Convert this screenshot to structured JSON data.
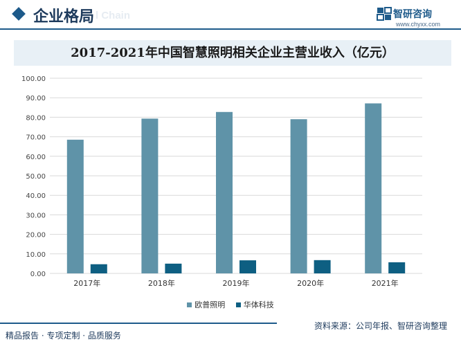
{
  "header": {
    "title": "企业格局",
    "ghost_text": "l Chain"
  },
  "logo": {
    "name": "智研咨询",
    "url": "www.chyxx.com"
  },
  "chart_data": {
    "type": "bar",
    "title": "2017-2021年中国智慧照明相关企业主营业收入（亿元）",
    "categories": [
      "2017年",
      "2018年",
      "2019年",
      "2020年",
      "2021年"
    ],
    "series": [
      {
        "name": "欧普照明",
        "values": [
          68.5,
          79.3,
          82.7,
          79.0,
          87.1
        ],
        "color": "#5f93a8"
      },
      {
        "name": "华体科技",
        "values": [
          4.7,
          5.0,
          6.7,
          6.8,
          5.7
        ],
        "color": "#0e5f82"
      }
    ],
    "yticks": [
      "0.00",
      "10.00",
      "20.00",
      "30.00",
      "40.00",
      "50.00",
      "60.00",
      "70.00",
      "80.00",
      "90.00",
      "100.00"
    ],
    "ylim": [
      0,
      100
    ],
    "grid": true,
    "legend_position": "bottom"
  },
  "footer": {
    "left_text": "精品报告 · 专项定制 · 品质服务",
    "right_text": "资料来源：公司年报、智研咨询整理"
  }
}
